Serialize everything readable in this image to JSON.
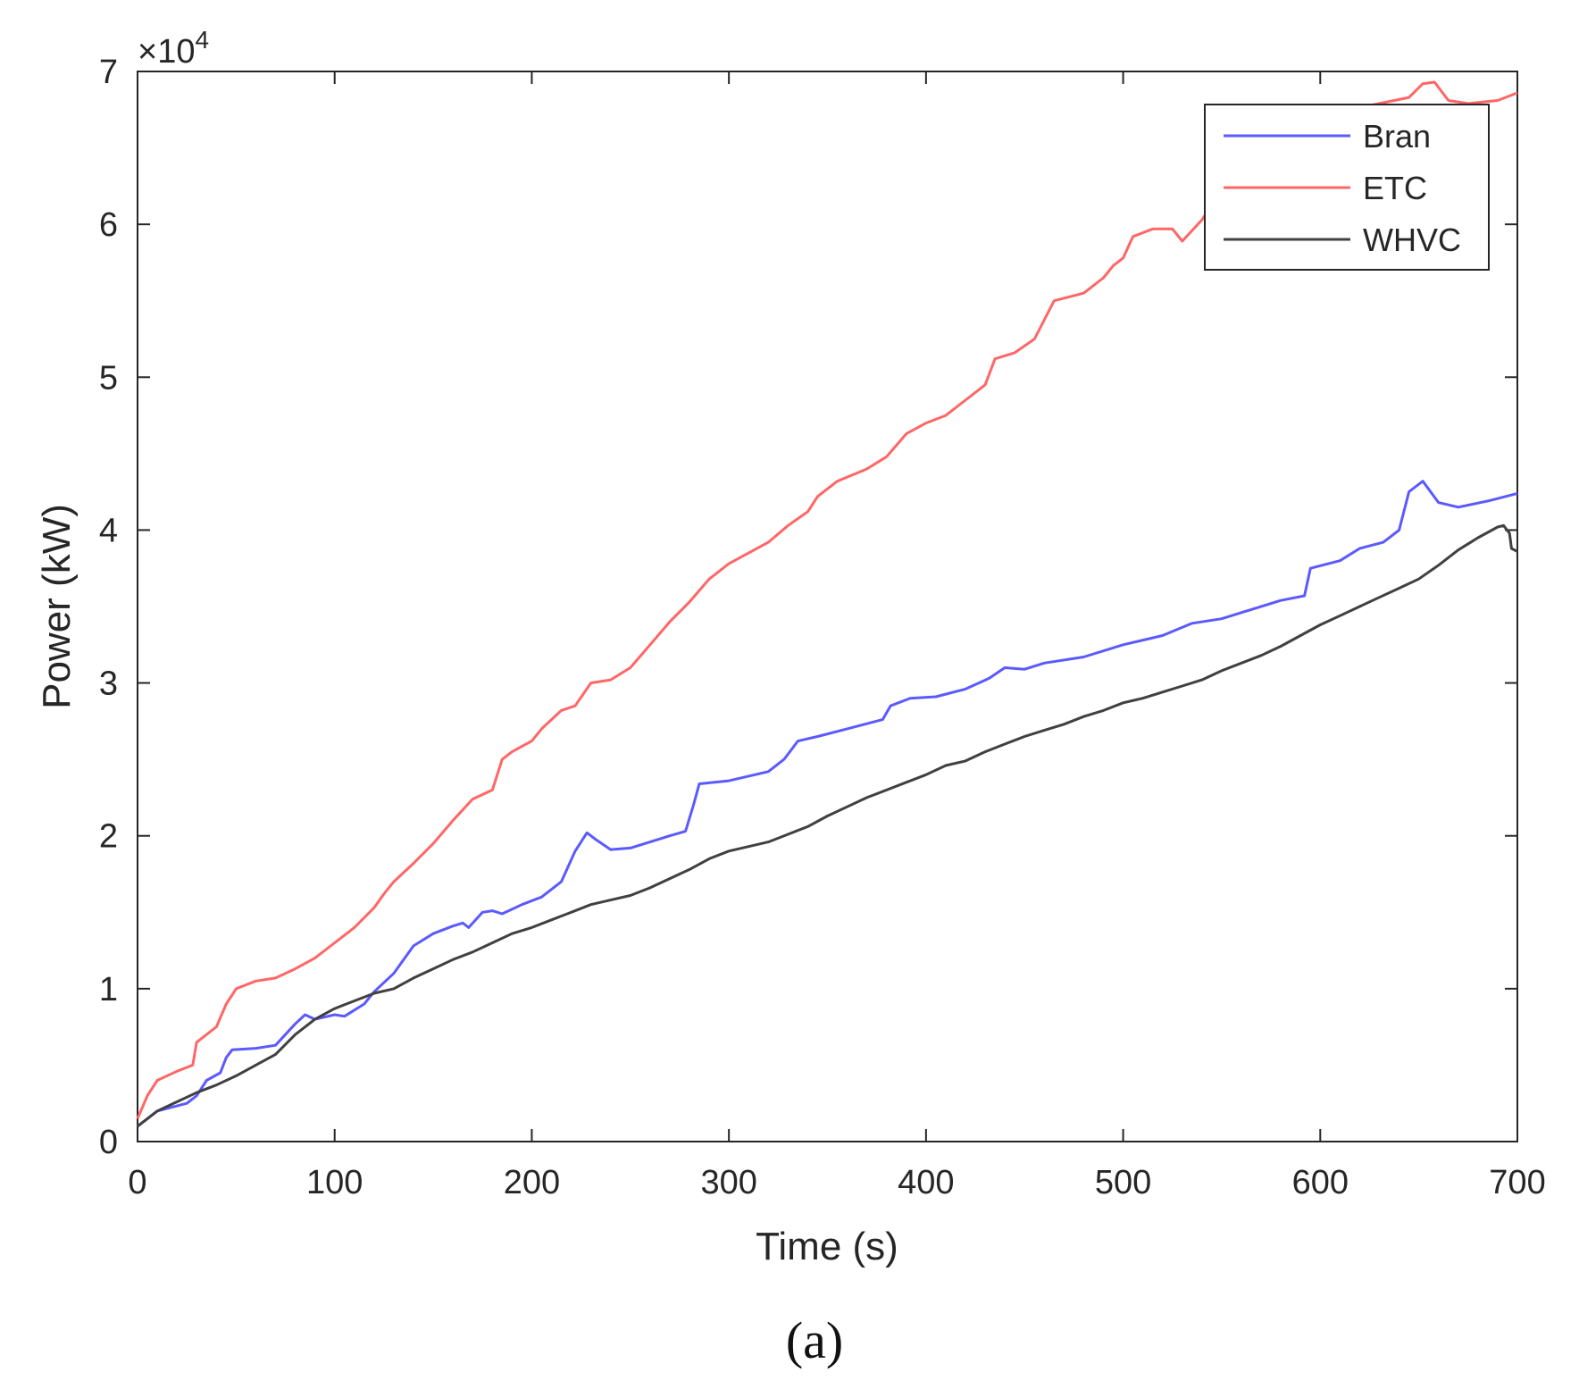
{
  "chart_data": {
    "type": "line",
    "xlabel": "Time (s)",
    "ylabel": "Power (kW)",
    "y_exponent_label": "×10",
    "y_exponent_power": "4",
    "xlim": [
      0,
      700
    ],
    "ylim": [
      0,
      70000
    ],
    "x_ticks": [
      0,
      100,
      200,
      300,
      400,
      500,
      600,
      700
    ],
    "x_tick_labels": [
      "0",
      "100",
      "200",
      "300",
      "400",
      "500",
      "600",
      "700"
    ],
    "y_ticks": [
      0,
      10000,
      20000,
      30000,
      40000,
      50000,
      60000,
      70000
    ],
    "y_tick_labels": [
      "0",
      "1",
      "2",
      "3",
      "4",
      "5",
      "6",
      "7"
    ],
    "grid": false,
    "legend_position": "top-right",
    "caption": "(a)",
    "series": [
      {
        "name": "Bran",
        "color": "#5a5aff",
        "points": [
          [
            0,
            1000
          ],
          [
            10,
            2000
          ],
          [
            25,
            2500
          ],
          [
            30,
            3000
          ],
          [
            35,
            4000
          ],
          [
            42,
            4500
          ],
          [
            45,
            5500
          ],
          [
            48,
            6000
          ],
          [
            60,
            6100
          ],
          [
            70,
            6300
          ],
          [
            80,
            7700
          ],
          [
            85,
            8300
          ],
          [
            90,
            8000
          ],
          [
            100,
            8300
          ],
          [
            105,
            8200
          ],
          [
            115,
            9000
          ],
          [
            120,
            9800
          ],
          [
            130,
            11000
          ],
          [
            140,
            12800
          ],
          [
            150,
            13600
          ],
          [
            160,
            14100
          ],
          [
            165,
            14300
          ],
          [
            168,
            14000
          ],
          [
            175,
            15000
          ],
          [
            180,
            15100
          ],
          [
            185,
            14900
          ],
          [
            195,
            15500
          ],
          [
            205,
            16000
          ],
          [
            215,
            17000
          ],
          [
            222,
            19000
          ],
          [
            228,
            20200
          ],
          [
            232,
            19800
          ],
          [
            240,
            19100
          ],
          [
            250,
            19200
          ],
          [
            260,
            19600
          ],
          [
            270,
            20000
          ],
          [
            278,
            20300
          ],
          [
            282,
            22000
          ],
          [
            285,
            23400
          ],
          [
            300,
            23600
          ],
          [
            320,
            24200
          ],
          [
            328,
            25000
          ],
          [
            335,
            26200
          ],
          [
            345,
            26500
          ],
          [
            360,
            27000
          ],
          [
            378,
            27600
          ],
          [
            382,
            28500
          ],
          [
            392,
            29000
          ],
          [
            405,
            29100
          ],
          [
            420,
            29600
          ],
          [
            432,
            30300
          ],
          [
            440,
            31000
          ],
          [
            450,
            30900
          ],
          [
            460,
            31300
          ],
          [
            480,
            31700
          ],
          [
            500,
            32500
          ],
          [
            520,
            33100
          ],
          [
            535,
            33900
          ],
          [
            550,
            34200
          ],
          [
            565,
            34800
          ],
          [
            580,
            35400
          ],
          [
            592,
            35700
          ],
          [
            595,
            37500
          ],
          [
            610,
            38000
          ],
          [
            620,
            38800
          ],
          [
            632,
            39200
          ],
          [
            640,
            40000
          ],
          [
            645,
            42500
          ],
          [
            652,
            43200
          ],
          [
            660,
            41800
          ],
          [
            670,
            41500
          ],
          [
            685,
            41900
          ],
          [
            700,
            42400
          ]
        ]
      },
      {
        "name": "ETC",
        "color": "#ff6666",
        "points": [
          [
            0,
            1500
          ],
          [
            5,
            3000
          ],
          [
            10,
            4000
          ],
          [
            20,
            4600
          ],
          [
            28,
            5000
          ],
          [
            30,
            6500
          ],
          [
            40,
            7500
          ],
          [
            45,
            9000
          ],
          [
            50,
            10000
          ],
          [
            60,
            10500
          ],
          [
            70,
            10700
          ],
          [
            80,
            11300
          ],
          [
            90,
            12000
          ],
          [
            100,
            13000
          ],
          [
            110,
            14000
          ],
          [
            120,
            15300
          ],
          [
            125,
            16200
          ],
          [
            130,
            17000
          ],
          [
            140,
            18200
          ],
          [
            150,
            19500
          ],
          [
            160,
            21000
          ],
          [
            170,
            22400
          ],
          [
            180,
            23000
          ],
          [
            185,
            25000
          ],
          [
            190,
            25500
          ],
          [
            200,
            26200
          ],
          [
            205,
            27000
          ],
          [
            215,
            28200
          ],
          [
            222,
            28500
          ],
          [
            230,
            30000
          ],
          [
            240,
            30200
          ],
          [
            250,
            31000
          ],
          [
            260,
            32500
          ],
          [
            270,
            34000
          ],
          [
            280,
            35300
          ],
          [
            290,
            36800
          ],
          [
            300,
            37800
          ],
          [
            310,
            38500
          ],
          [
            320,
            39200
          ],
          [
            330,
            40300
          ],
          [
            340,
            41200
          ],
          [
            345,
            42200
          ],
          [
            355,
            43200
          ],
          [
            370,
            44000
          ],
          [
            380,
            44800
          ],
          [
            390,
            46300
          ],
          [
            400,
            47000
          ],
          [
            410,
            47500
          ],
          [
            420,
            48500
          ],
          [
            430,
            49500
          ],
          [
            435,
            51200
          ],
          [
            445,
            51600
          ],
          [
            455,
            52500
          ],
          [
            465,
            55000
          ],
          [
            480,
            55500
          ],
          [
            490,
            56500
          ],
          [
            495,
            57300
          ],
          [
            500,
            57800
          ],
          [
            505,
            59200
          ],
          [
            515,
            59700
          ],
          [
            525,
            59700
          ],
          [
            530,
            58900
          ],
          [
            540,
            60300
          ],
          [
            550,
            62300
          ],
          [
            560,
            63500
          ],
          [
            575,
            64800
          ],
          [
            590,
            65500
          ],
          [
            600,
            66200
          ],
          [
            615,
            67500
          ],
          [
            630,
            67900
          ],
          [
            645,
            68300
          ],
          [
            652,
            69200
          ],
          [
            658,
            69300
          ],
          [
            665,
            68100
          ],
          [
            675,
            67900
          ],
          [
            690,
            68100
          ],
          [
            700,
            68600
          ]
        ]
      },
      {
        "name": "WHVC",
        "color": "#404040",
        "points": [
          [
            0,
            1000
          ],
          [
            10,
            2000
          ],
          [
            20,
            2600
          ],
          [
            30,
            3200
          ],
          [
            40,
            3700
          ],
          [
            50,
            4300
          ],
          [
            60,
            5000
          ],
          [
            70,
            5700
          ],
          [
            80,
            7000
          ],
          [
            90,
            8000
          ],
          [
            100,
            8700
          ],
          [
            110,
            9200
          ],
          [
            120,
            9700
          ],
          [
            130,
            10000
          ],
          [
            140,
            10700
          ],
          [
            150,
            11300
          ],
          [
            160,
            11900
          ],
          [
            170,
            12400
          ],
          [
            180,
            13000
          ],
          [
            190,
            13600
          ],
          [
            200,
            14000
          ],
          [
            210,
            14500
          ],
          [
            220,
            15000
          ],
          [
            230,
            15500
          ],
          [
            240,
            15800
          ],
          [
            250,
            16100
          ],
          [
            260,
            16600
          ],
          [
            270,
            17200
          ],
          [
            280,
            17800
          ],
          [
            290,
            18500
          ],
          [
            300,
            19000
          ],
          [
            310,
            19300
          ],
          [
            320,
            19600
          ],
          [
            330,
            20100
          ],
          [
            340,
            20600
          ],
          [
            350,
            21300
          ],
          [
            360,
            21900
          ],
          [
            370,
            22500
          ],
          [
            380,
            23000
          ],
          [
            390,
            23500
          ],
          [
            400,
            24000
          ],
          [
            410,
            24600
          ],
          [
            420,
            24900
          ],
          [
            430,
            25500
          ],
          [
            440,
            26000
          ],
          [
            450,
            26500
          ],
          [
            460,
            26900
          ],
          [
            470,
            27300
          ],
          [
            480,
            27800
          ],
          [
            490,
            28200
          ],
          [
            500,
            28700
          ],
          [
            510,
            29000
          ],
          [
            520,
            29400
          ],
          [
            530,
            29800
          ],
          [
            540,
            30200
          ],
          [
            550,
            30800
          ],
          [
            560,
            31300
          ],
          [
            570,
            31800
          ],
          [
            580,
            32400
          ],
          [
            590,
            33100
          ],
          [
            600,
            33800
          ],
          [
            610,
            34400
          ],
          [
            620,
            35000
          ],
          [
            630,
            35600
          ],
          [
            640,
            36200
          ],
          [
            650,
            36800
          ],
          [
            660,
            37700
          ],
          [
            670,
            38700
          ],
          [
            680,
            39500
          ],
          [
            690,
            40200
          ],
          [
            693,
            40300
          ],
          [
            696,
            39800
          ],
          [
            697,
            38800
          ],
          [
            700,
            38600
          ]
        ]
      }
    ]
  }
}
